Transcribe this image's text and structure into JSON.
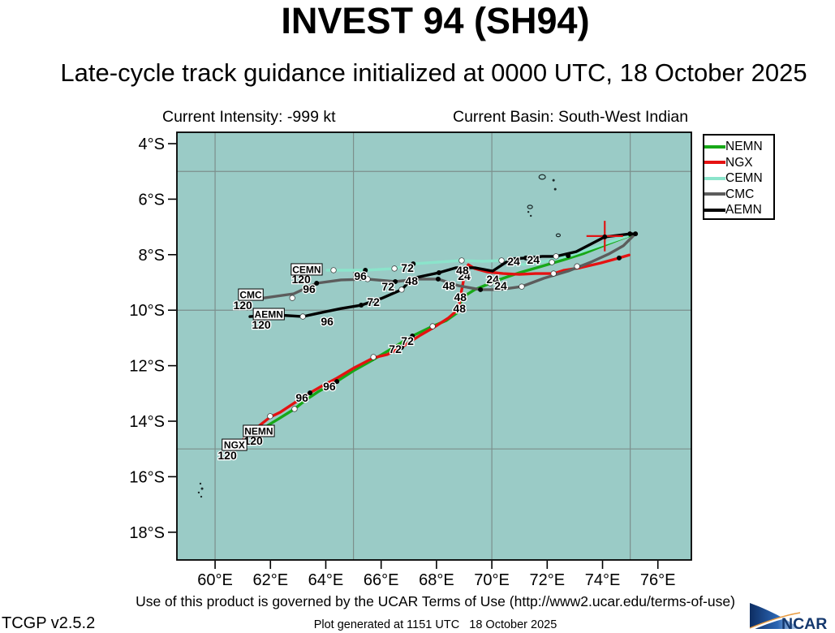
{
  "title": "INVEST 94 (SH94)",
  "subtitle": "Late-cycle track guidance initialized at 0000 UTC, 18 October 2025",
  "header": {
    "intensity_label": "Current Intensity: -999 kt",
    "basin_label": "Current Basin: South-West Indian"
  },
  "footer": {
    "terms": "Use of this product is governed by the UCAR Terms of Use (http://www2.ucar.edu/terms-of-use)",
    "version": "TCGP v2.5.2",
    "generated": "Plot generated at 1151 UTC   18 October 2025",
    "logo_text": "NCAR"
  },
  "chart_data": {
    "type": "line",
    "kind": "tropical-cyclone-track-guidance-map",
    "title": "INVEST 94 (SH94)",
    "subtitle": "Late-cycle track guidance initialized at 0000 UTC, 18 October 2025",
    "map": {
      "bg_color": "#9acbc6",
      "grid_color": "#7c8f8c",
      "border_color": "#000000",
      "lon_range_deg_e": [
        58.62,
        77.21
      ],
      "lat_range_deg_s": [
        3.59,
        19.0
      ],
      "grid_lons": [
        60,
        65,
        70,
        75
      ],
      "grid_lats": [
        5,
        10,
        15
      ],
      "x_ticks": [
        {
          "lon": 60,
          "label": "60°E"
        },
        {
          "lon": 62,
          "label": "62°E"
        },
        {
          "lon": 64,
          "label": "64°E"
        },
        {
          "lon": 66,
          "label": "66°E"
        },
        {
          "lon": 68,
          "label": "68°E"
        },
        {
          "lon": 70,
          "label": "70°E"
        },
        {
          "lon": 72,
          "label": "72°E"
        },
        {
          "lon": 74,
          "label": "74°E"
        },
        {
          "lon": 76,
          "label": "76°E"
        }
      ],
      "y_ticks": [
        {
          "lat": 4,
          "label": "4°S"
        },
        {
          "lat": 6,
          "label": "6°S"
        },
        {
          "lat": 8,
          "label": "8°S"
        },
        {
          "lat": 10,
          "label": "10°S"
        },
        {
          "lat": 12,
          "label": "12°S"
        },
        {
          "lat": 14,
          "label": "14°S"
        },
        {
          "lat": 16,
          "label": "16°S"
        },
        {
          "lat": 18,
          "label": "18°S"
        }
      ]
    },
    "start_marker": {
      "lon": 74.08,
      "lat": 7.33,
      "arm_lon": 0.66,
      "arm_lat": 0.55,
      "color": "#e01515"
    },
    "islands": [
      [
        71.82,
        5.2,
        4,
        "o"
      ],
      [
        72.23,
        5.32,
        1.5,
        "d"
      ],
      [
        72.29,
        5.64,
        1.5,
        "d"
      ],
      [
        71.38,
        6.28,
        3,
        "o"
      ],
      [
        71.32,
        6.46,
        1.2,
        "d"
      ],
      [
        71.41,
        6.6,
        1.2,
        "d"
      ],
      [
        72.4,
        7.3,
        2.5,
        "o"
      ],
      [
        59.47,
        16.25,
        1.2,
        "d"
      ],
      [
        59.53,
        16.43,
        1.5,
        "d"
      ],
      [
        59.41,
        16.57,
        1.2,
        "d"
      ],
      [
        59.5,
        16.72,
        1.2,
        "d"
      ]
    ],
    "series": [
      {
        "name": "NEMN",
        "color": "#17a817",
        "points": [
          [
            75.01,
            7.3
          ],
          [
            74.22,
            7.6
          ],
          [
            73.34,
            7.95
          ],
          [
            72.61,
            8.18
          ],
          [
            71.73,
            8.44
          ],
          [
            71.0,
            8.65
          ],
          [
            70.41,
            8.85
          ],
          [
            69.94,
            9.03
          ],
          [
            69.38,
            9.26
          ],
          [
            69.0,
            9.5
          ],
          [
            68.83,
            9.79
          ],
          [
            68.77,
            10.08
          ],
          [
            68.36,
            10.37
          ],
          [
            67.86,
            10.58
          ],
          [
            67.13,
            10.93
          ],
          [
            66.36,
            11.4
          ],
          [
            65.72,
            11.78
          ],
          [
            65.04,
            12.16
          ],
          [
            64.4,
            12.57
          ],
          [
            63.75,
            12.92
          ],
          [
            63.23,
            13.27
          ],
          [
            62.87,
            13.56
          ],
          [
            62.35,
            13.88
          ],
          [
            61.91,
            14.15
          ],
          [
            61.55,
            14.41
          ]
        ],
        "dots": [
          [
            72.17,
            8.27,
            "w"
          ],
          [
            69.94,
            9.03,
            "w"
          ],
          [
            67.86,
            10.58,
            "w"
          ],
          [
            67.13,
            10.93,
            "k"
          ],
          [
            64.4,
            12.57,
            "k"
          ],
          [
            62.87,
            13.56,
            "w"
          ]
        ],
        "hour_labels": [
          [
            "24",
            70.03,
            8.88
          ],
          [
            "48",
            68.86,
            9.53
          ],
          [
            "72",
            66.95,
            11.11
          ],
          [
            "96",
            64.13,
            12.74
          ],
          [
            "120",
            61.38,
            14.7
          ]
        ],
        "name_box": [
          61.58,
          14.35
        ]
      },
      {
        "name": "NGX",
        "color": "#e51212",
        "points": [
          [
            74.96,
            8.01
          ],
          [
            74.6,
            8.12
          ],
          [
            73.93,
            8.3
          ],
          [
            73.2,
            8.47
          ],
          [
            72.61,
            8.56
          ],
          [
            72.23,
            8.68
          ],
          [
            71.58,
            8.68
          ],
          [
            71.0,
            8.71
          ],
          [
            70.41,
            8.68
          ],
          [
            69.82,
            8.62
          ],
          [
            69.38,
            8.5
          ],
          [
            69.15,
            8.36
          ],
          [
            69.03,
            8.65
          ],
          [
            68.94,
            9.12
          ],
          [
            68.86,
            9.53
          ],
          [
            68.8,
            9.96
          ],
          [
            68.42,
            10.29
          ],
          [
            67.92,
            10.61
          ],
          [
            67.42,
            10.9
          ],
          [
            66.74,
            11.34
          ],
          [
            66.22,
            11.6
          ],
          [
            65.72,
            11.72
          ],
          [
            65.04,
            12.07
          ],
          [
            64.4,
            12.45
          ],
          [
            63.9,
            12.71
          ],
          [
            63.43,
            12.98
          ],
          [
            62.84,
            13.36
          ],
          [
            62.35,
            13.68
          ],
          [
            61.99,
            13.85
          ],
          [
            61.55,
            14.2
          ],
          [
            61.17,
            14.53
          ],
          [
            60.88,
            14.79
          ]
        ],
        "dots": [
          [
            74.6,
            8.12,
            "k"
          ],
          [
            72.23,
            8.68,
            "w"
          ],
          [
            66.74,
            11.34,
            "k"
          ],
          [
            65.72,
            11.69,
            "w"
          ],
          [
            63.43,
            12.98,
            "k"
          ],
          [
            61.99,
            13.82,
            "w"
          ]
        ],
        "hour_labels": [
          [
            "24",
            69.0,
            8.77
          ],
          [
            "48",
            68.83,
            9.94
          ],
          [
            "72",
            66.51,
            11.4
          ],
          [
            "96",
            63.14,
            13.15
          ],
          [
            "120",
            60.44,
            15.23
          ]
        ],
        "name_box": [
          60.7,
          14.85
        ]
      },
      {
        "name": "CEMN",
        "color": "#8be4cb",
        "points": [
          [
            74.9,
            7.33
          ],
          [
            73.93,
            7.66
          ],
          [
            72.9,
            8.01
          ],
          [
            71.94,
            8.24
          ],
          [
            71.14,
            8.36
          ],
          [
            70.35,
            8.21
          ],
          [
            69.68,
            8.24
          ],
          [
            68.91,
            8.21
          ],
          [
            68.06,
            8.27
          ],
          [
            67.16,
            8.33
          ],
          [
            66.48,
            8.5
          ],
          [
            65.43,
            8.56
          ],
          [
            64.28,
            8.56
          ],
          [
            64.05,
            8.56
          ]
        ],
        "dots": [
          [
            72.76,
            8.04,
            "k"
          ],
          [
            70.35,
            8.21,
            "w"
          ],
          [
            68.91,
            8.21,
            "w"
          ],
          [
            67.16,
            8.33,
            "k"
          ],
          [
            66.48,
            8.5,
            "w"
          ],
          [
            65.43,
            8.56,
            "k"
          ],
          [
            64.28,
            8.56,
            "w"
          ]
        ],
        "hour_labels": [
          [
            "24",
            70.79,
            8.24
          ],
          [
            "48",
            68.94,
            8.56
          ],
          [
            "72",
            66.95,
            8.47
          ],
          [
            "96",
            65.25,
            8.77
          ],
          [
            "120",
            63.11,
            8.88
          ]
        ],
        "name_box": [
          63.31,
          8.53
        ]
      },
      {
        "name": "CMC",
        "color": "#5c5c5c",
        "points": [
          [
            75.16,
            7.27
          ],
          [
            74.75,
            7.68
          ],
          [
            74.22,
            7.98
          ],
          [
            73.58,
            8.27
          ],
          [
            72.76,
            8.59
          ],
          [
            71.88,
            8.85
          ],
          [
            71.08,
            9.15
          ],
          [
            70.26,
            9.26
          ],
          [
            69.59,
            9.26
          ],
          [
            68.8,
            9.12
          ],
          [
            68.06,
            8.88
          ],
          [
            67.33,
            8.88
          ],
          [
            66.51,
            8.97
          ],
          [
            65.51,
            8.88
          ],
          [
            64.55,
            8.91
          ],
          [
            63.67,
            9.03
          ],
          [
            62.84,
            9.41
          ],
          [
            61.76,
            9.56
          ]
        ],
        "dots": [
          [
            73.08,
            8.42,
            "w"
          ],
          [
            71.08,
            9.15,
            "w"
          ],
          [
            69.59,
            9.26,
            "k"
          ],
          [
            68.06,
            8.88,
            "k"
          ],
          [
            66.51,
            8.97,
            "k"
          ],
          [
            65.51,
            8.88,
            "w"
          ],
          [
            63.67,
            9.03,
            "k"
          ],
          [
            62.79,
            9.56,
            "w"
          ]
        ],
        "hour_labels": [
          [
            "24",
            70.32,
            9.12
          ],
          [
            "48",
            67.1,
            8.94
          ],
          [
            "72",
            66.25,
            9.15
          ],
          [
            "96",
            63.4,
            9.23
          ],
          [
            "120",
            61.0,
            9.82
          ]
        ],
        "name_box": [
          61.29,
          9.44
        ]
      },
      {
        "name": "AEMN",
        "color": "#000000",
        "points": [
          [
            75.19,
            7.25
          ],
          [
            74.99,
            7.25
          ],
          [
            74.08,
            7.36
          ],
          [
            73.05,
            7.89
          ],
          [
            72.32,
            8.06
          ],
          [
            71.82,
            8.06
          ],
          [
            71.23,
            8.12
          ],
          [
            70.7,
            8.15
          ],
          [
            70.03,
            8.59
          ],
          [
            69.38,
            8.47
          ],
          [
            68.71,
            8.47
          ],
          [
            68.09,
            8.65
          ],
          [
            67.13,
            8.85
          ],
          [
            66.74,
            9.26
          ],
          [
            66.01,
            9.58
          ],
          [
            65.28,
            9.82
          ],
          [
            64.55,
            9.94
          ],
          [
            63.87,
            10.08
          ],
          [
            63.17,
            10.23
          ],
          [
            62.2,
            10.17
          ],
          [
            61.26,
            10.23
          ]
        ],
        "dots": [
          [
            75.19,
            7.25,
            "k"
          ],
          [
            74.99,
            7.25,
            "k"
          ],
          [
            74.08,
            7.36,
            "k"
          ],
          [
            72.32,
            8.06,
            "w"
          ],
          [
            71.23,
            8.12,
            "k"
          ],
          [
            68.09,
            8.65,
            "k"
          ],
          [
            66.74,
            9.26,
            "w"
          ],
          [
            65.28,
            9.82,
            "k"
          ],
          [
            63.17,
            10.23,
            "w"
          ]
        ],
        "hour_labels": [
          [
            "24",
            71.5,
            8.18
          ],
          [
            "48",
            68.45,
            9.12
          ],
          [
            "72",
            65.72,
            9.7
          ],
          [
            "96",
            64.05,
            10.4
          ],
          [
            "120",
            61.67,
            10.52
          ]
        ],
        "name_box": [
          61.94,
          10.14
        ]
      }
    ],
    "legend": {
      "order": [
        "NEMN",
        "NGX",
        "CEMN",
        "CMC",
        "AEMN"
      ]
    }
  }
}
